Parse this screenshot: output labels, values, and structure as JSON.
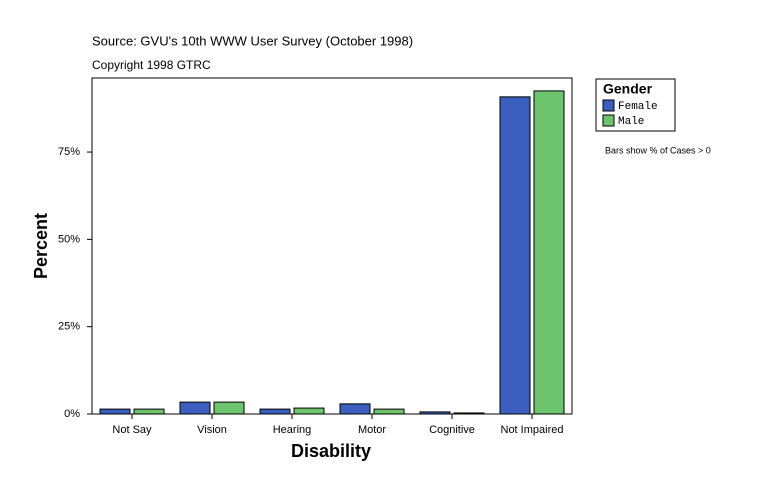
{
  "chart_data": {
    "type": "bar",
    "source": "Source: GVU's 10th WWW User Survey (October 1998)",
    "copyright": "Copyright 1998 GTRC",
    "xlabel": "Disability",
    "ylabel": "Percent",
    "legend_title": "Gender",
    "note": "Bars show % of Cases > 0",
    "categories": [
      "Not Say",
      "Vision",
      "Hearing",
      "Motor",
      "Cognitive",
      "Not Impaired"
    ],
    "series": [
      {
        "name": "Female",
        "color": "#3a5fbf",
        "values": [
          1.4,
          3.4,
          1.4,
          2.9,
          0.6,
          90.8
        ]
      },
      {
        "name": "Male",
        "color": "#6cc56c",
        "values": [
          1.4,
          3.4,
          1.7,
          1.4,
          0.3,
          92.5
        ]
      }
    ],
    "ylim": [
      0,
      96.2
    ],
    "yticks": [
      {
        "value": 0,
        "label": "0%"
      },
      {
        "value": 25,
        "label": "25%"
      },
      {
        "value": 50,
        "label": "50%"
      },
      {
        "value": 75,
        "label": "75%"
      }
    ]
  }
}
